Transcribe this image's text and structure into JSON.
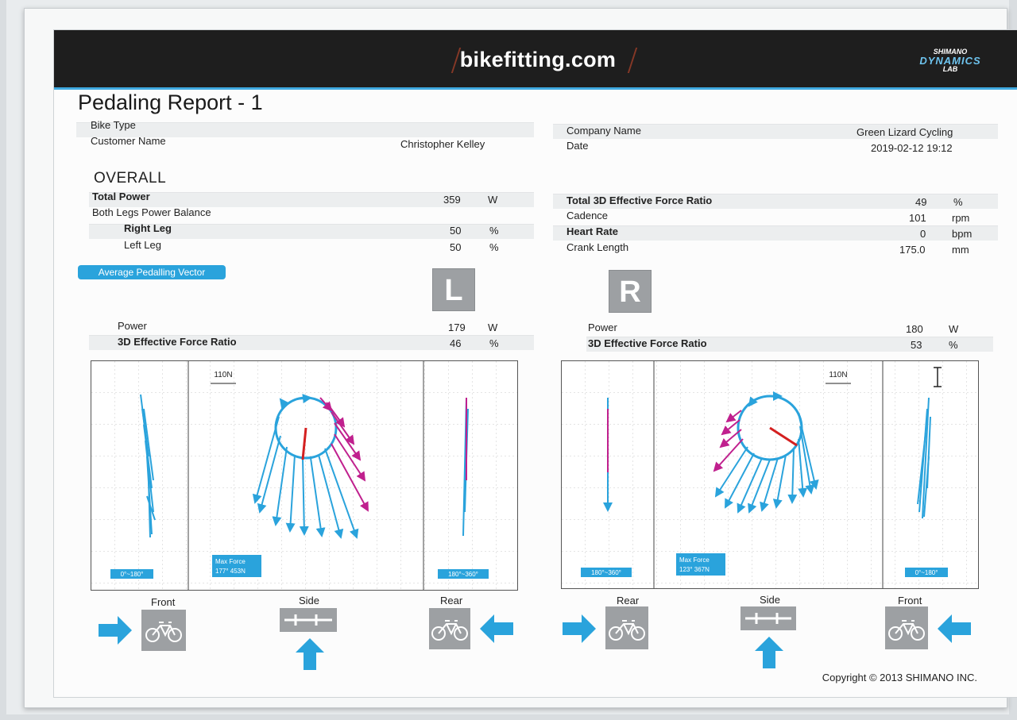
{
  "header": {
    "logo": "bikefitting.com",
    "brand_line1": "SHIMANO",
    "brand_line2": "DYNAMICS",
    "brand_line3": "LAB"
  },
  "title": "Pedaling Report - 1",
  "info": {
    "bike_type_label": "Bike Type",
    "bike_type_value": "",
    "customer_label": "Customer Name",
    "customer_value": "Christopher Kelley",
    "company_label": "Company Name",
    "company_value": "Green Lizard Cycling",
    "date_label": "Date",
    "date_value": "2019-02-12 19:12"
  },
  "overall": {
    "heading": "OVERALL",
    "total_power": {
      "label": "Total Power",
      "value": "359",
      "unit": "W"
    },
    "balance_label": "Both Legs Power Balance",
    "right_leg": {
      "label": "Right Leg",
      "value": "50",
      "unit": "%"
    },
    "left_leg": {
      "label": "Left Leg",
      "value": "50",
      "unit": "%"
    },
    "effective_ratio": {
      "label": "Total 3D Effective Force Ratio",
      "value": "49",
      "unit": "%"
    },
    "cadence": {
      "label": "Cadence",
      "value": "101",
      "unit": "rpm"
    },
    "heart_rate": {
      "label": "Heart Rate",
      "value": "0",
      "unit": "bpm"
    },
    "crank_length": {
      "label": "Crank Length",
      "value": "175.0",
      "unit": "mm"
    }
  },
  "vector_tab": "Average Pedalling Vector",
  "left": {
    "badge": "L",
    "power": {
      "label": "Power",
      "value": "179",
      "unit": "W"
    },
    "ratio": {
      "label": "3D Effective Force Ratio",
      "value": "46",
      "unit": "%"
    },
    "scale": "110N",
    "front_range": "0°~180°",
    "rear_range": "180°~360°",
    "max_force_label": "Max Force",
    "max_force_value": "177° 453N"
  },
  "right": {
    "badge": "R",
    "power": {
      "label": "Power",
      "value": "180",
      "unit": "W"
    },
    "ratio": {
      "label": "3D Effective Force Ratio",
      "value": "53",
      "unit": "%"
    },
    "scale": "110N",
    "rear_range": "180°~360°",
    "front_range": "0°~180°",
    "max_force_label": "Max Force",
    "max_force_value": "123° 367N"
  },
  "view_labels": {
    "front": "Front",
    "side": "Side",
    "rear": "Rear"
  },
  "copyright": "Copyright © 2013 SHIMANO INC.",
  "colors": {
    "accent": "#2aa3dc",
    "vector_blue": "#2aa3dc",
    "vector_magenta": "#c0208e",
    "crank_red": "#d42020"
  }
}
